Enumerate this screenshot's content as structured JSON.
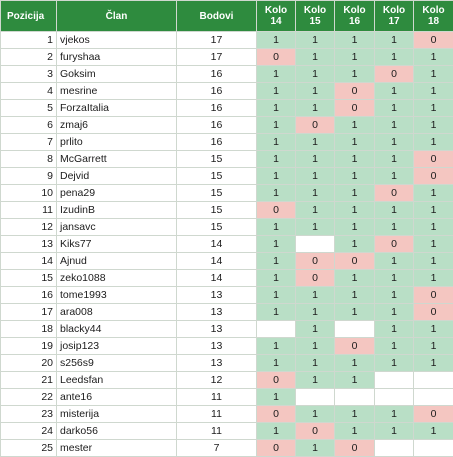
{
  "table": {
    "headers": {
      "pos": "Pozicija",
      "member": "Član",
      "points": "Bodovi",
      "rounds": [
        {
          "top": "Kolo",
          "bottom": "14"
        },
        {
          "top": "Kolo",
          "bottom": "15"
        },
        {
          "top": "Kolo",
          "bottom": "16"
        },
        {
          "top": "Kolo",
          "bottom": "17"
        },
        {
          "top": "Kolo",
          "bottom": "18"
        }
      ]
    },
    "cell_colors": {
      "hit": "#b9dfc6",
      "miss": "#f4c6c1",
      "empty": "#ffffff",
      "header": "#2e8b3e"
    },
    "rows": [
      {
        "pos": "1",
        "member": "vjekos",
        "points": "17",
        "rounds": [
          "1",
          "1",
          "1",
          "1",
          "0"
        ]
      },
      {
        "pos": "2",
        "member": "furyshaa",
        "points": "17",
        "rounds": [
          "0",
          "1",
          "1",
          "1",
          "1"
        ]
      },
      {
        "pos": "3",
        "member": "Goksim",
        "points": "16",
        "rounds": [
          "1",
          "1",
          "1",
          "0",
          "1"
        ]
      },
      {
        "pos": "4",
        "member": "mesrine",
        "points": "16",
        "rounds": [
          "1",
          "1",
          "0",
          "1",
          "1"
        ]
      },
      {
        "pos": "5",
        "member": "ForzaItalia",
        "points": "16",
        "rounds": [
          "1",
          "1",
          "0",
          "1",
          "1"
        ]
      },
      {
        "pos": "6",
        "member": "zmaj6",
        "points": "16",
        "rounds": [
          "1",
          "0",
          "1",
          "1",
          "1"
        ]
      },
      {
        "pos": "7",
        "member": "prlito",
        "points": "16",
        "rounds": [
          "1",
          "1",
          "1",
          "1",
          "1"
        ]
      },
      {
        "pos": "8",
        "member": "McGarrett",
        "points": "15",
        "rounds": [
          "1",
          "1",
          "1",
          "1",
          "0"
        ]
      },
      {
        "pos": "9",
        "member": "Dejvid",
        "points": "15",
        "rounds": [
          "1",
          "1",
          "1",
          "1",
          "0"
        ]
      },
      {
        "pos": "10",
        "member": "pena29",
        "points": "15",
        "rounds": [
          "1",
          "1",
          "1",
          "0",
          "1"
        ]
      },
      {
        "pos": "11",
        "member": "IzudinB",
        "points": "15",
        "rounds": [
          "0",
          "1",
          "1",
          "1",
          "1"
        ]
      },
      {
        "pos": "12",
        "member": "jansavc",
        "points": "15",
        "rounds": [
          "1",
          "1",
          "1",
          "1",
          "1"
        ]
      },
      {
        "pos": "13",
        "member": "Kiks77",
        "points": "14",
        "rounds": [
          "1",
          "",
          "1",
          "0",
          "1"
        ]
      },
      {
        "pos": "14",
        "member": "Ajnud",
        "points": "14",
        "rounds": [
          "1",
          "0",
          "0",
          "1",
          "1"
        ]
      },
      {
        "pos": "15",
        "member": "zeko1088",
        "points": "14",
        "rounds": [
          "1",
          "0",
          "1",
          "1",
          "1"
        ]
      },
      {
        "pos": "16",
        "member": "tome1993",
        "points": "13",
        "rounds": [
          "1",
          "1",
          "1",
          "1",
          "0"
        ]
      },
      {
        "pos": "17",
        "member": "ara008",
        "points": "13",
        "rounds": [
          "1",
          "1",
          "1",
          "1",
          "0"
        ]
      },
      {
        "pos": "18",
        "member": "blacky44",
        "points": "13",
        "rounds": [
          "",
          "1",
          "",
          "1",
          "1"
        ]
      },
      {
        "pos": "19",
        "member": "josip123",
        "points": "13",
        "rounds": [
          "1",
          "1",
          "0",
          "1",
          "1"
        ]
      },
      {
        "pos": "20",
        "member": "s256s9",
        "points": "13",
        "rounds": [
          "1",
          "1",
          "1",
          "1",
          "1"
        ]
      },
      {
        "pos": "21",
        "member": "Leedsfan",
        "points": "12",
        "rounds": [
          "0",
          "1",
          "1",
          "",
          ""
        ]
      },
      {
        "pos": "22",
        "member": "ante16",
        "points": "11",
        "rounds": [
          "1",
          "",
          "",
          "",
          ""
        ]
      },
      {
        "pos": "23",
        "member": "misterija",
        "points": "11",
        "rounds": [
          "0",
          "1",
          "1",
          "1",
          "0"
        ]
      },
      {
        "pos": "24",
        "member": "darko56",
        "points": "11",
        "rounds": [
          "1",
          "0",
          "1",
          "1",
          "1"
        ]
      },
      {
        "pos": "25",
        "member": "mester",
        "points": "7",
        "rounds": [
          "0",
          "1",
          "0",
          "",
          ""
        ]
      }
    ]
  }
}
